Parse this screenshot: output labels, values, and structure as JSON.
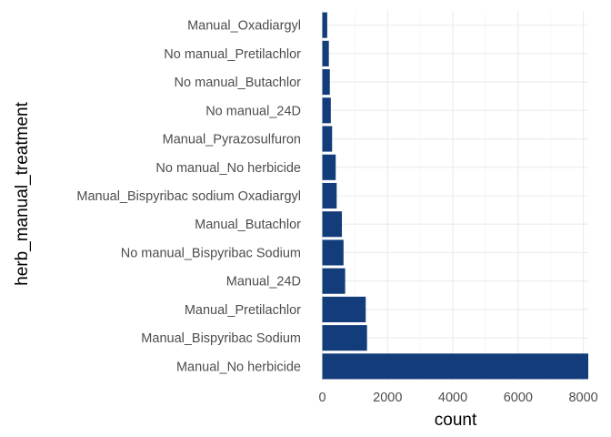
{
  "chart_data": {
    "type": "bar",
    "orientation": "horizontal",
    "title": "",
    "xlabel": "count",
    "ylabel": "herb_manual_treatment",
    "categories": [
      "Manual_No herbicide",
      "Manual_Bispyribac Sodium",
      "Manual_Pretilachlor",
      "Manual_24D",
      "No manual_Bispyribac Sodium",
      "Manual_Butachlor",
      "Manual_Bispyribac sodium  Oxadiargyl",
      "No manual_No herbicide",
      "Manual_Pyrazosulfuron",
      "No manual_24D",
      "No manual_Butachlor",
      "No manual_Pretilachlor",
      "Manual_Oxadiargyl"
    ],
    "values": [
      8150,
      1370,
      1330,
      700,
      650,
      600,
      440,
      410,
      300,
      260,
      230,
      200,
      150
    ],
    "xlim": [
      0,
      8150
    ],
    "x_ticks": [
      "0",
      "2000",
      "4000",
      "6000",
      "8000"
    ],
    "grid": true,
    "bar_color": "#123c7a",
    "grid_color": "#ebebeb"
  }
}
